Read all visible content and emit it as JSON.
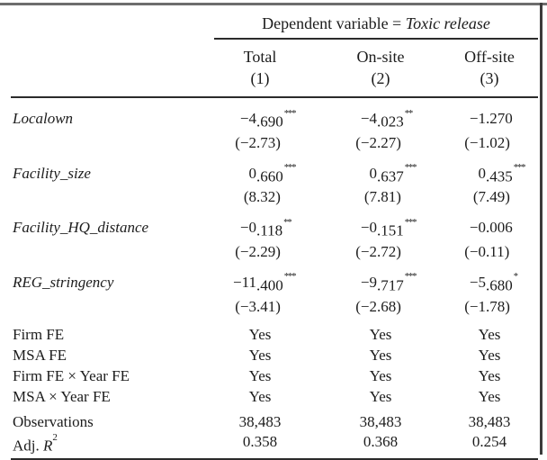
{
  "colors": {
    "text": "#1c1c1c",
    "rule": "#2b2b2b",
    "frame_top": "#6d6d6d",
    "frame_right": "#3c3c3c",
    "background": "#ffffff"
  },
  "table": {
    "spanner": {
      "prefix": "Dependent variable = ",
      "dep_var": "Toxic release"
    },
    "columns": [
      {
        "name": "Total",
        "number": "(1)"
      },
      {
        "name": "On-site",
        "number": "(2)"
      },
      {
        "name": "Off-site",
        "number": "(3)"
      }
    ],
    "coef_rows": [
      {
        "label": "Localown",
        "cells": [
          {
            "coef": "−4.690",
            "stars": "***",
            "t": "(−2.73)"
          },
          {
            "coef": "−4.023",
            "stars": "**",
            "t": "(−2.27)"
          },
          {
            "coef": "−1.270",
            "stars": "",
            "t": "(−1.02)"
          }
        ]
      },
      {
        "label": "Facility_size",
        "cells": [
          {
            "coef": "0.660",
            "stars": "***",
            "t": "(8.32)"
          },
          {
            "coef": "0.637",
            "stars": "***",
            "t": "(7.81)"
          },
          {
            "coef": "0.435",
            "stars": "***",
            "t": "(7.49)"
          }
        ]
      },
      {
        "label": "Facility_HQ_distance",
        "cells": [
          {
            "coef": "−0.118",
            "stars": "**",
            "t": "(−2.29)"
          },
          {
            "coef": "−0.151",
            "stars": "***",
            "t": "(−2.72)"
          },
          {
            "coef": "−0.006",
            "stars": "",
            "t": "(−0.11)"
          }
        ]
      },
      {
        "label": "REG_stringency",
        "cells": [
          {
            "coef": "−11.400",
            "stars": "***",
            "t": "(−3.41)"
          },
          {
            "coef": "−9.717",
            "stars": "***",
            "t": "(−2.68)"
          },
          {
            "coef": "−5.680",
            "stars": "*",
            "t": "(−1.78)"
          }
        ]
      }
    ],
    "fe_rows": [
      {
        "label": "Firm FE",
        "values": [
          "Yes",
          "Yes",
          "Yes"
        ]
      },
      {
        "label": "MSA FE",
        "values": [
          "Yes",
          "Yes",
          "Yes"
        ]
      },
      {
        "label": "Firm FE × Year FE",
        "values": [
          "Yes",
          "Yes",
          "Yes"
        ]
      },
      {
        "label": "MSA × Year FE",
        "values": [
          "Yes",
          "Yes",
          "Yes"
        ]
      }
    ],
    "stat_rows": [
      {
        "label": "Observations",
        "values": [
          "38,483",
          "38,483",
          "38,483"
        ]
      },
      {
        "label": "Adj. R²",
        "label_parts": {
          "pre": "Adj. ",
          "var": "R",
          "sup": "2"
        },
        "values": [
          "0.358",
          "0.368",
          "0.254"
        ]
      }
    ]
  }
}
